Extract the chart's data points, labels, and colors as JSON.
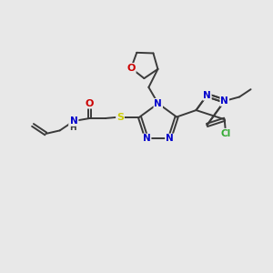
{
  "background_color": "#e8e8e8",
  "atom_colors": {
    "C": "#3a3a3a",
    "N": "#0000cc",
    "O": "#cc0000",
    "S": "#cccc00",
    "Cl": "#33aa33",
    "H": "#3a3a3a"
  },
  "bond_color": "#3a3a3a",
  "figsize": [
    3.0,
    3.0
  ],
  "dpi": 100
}
